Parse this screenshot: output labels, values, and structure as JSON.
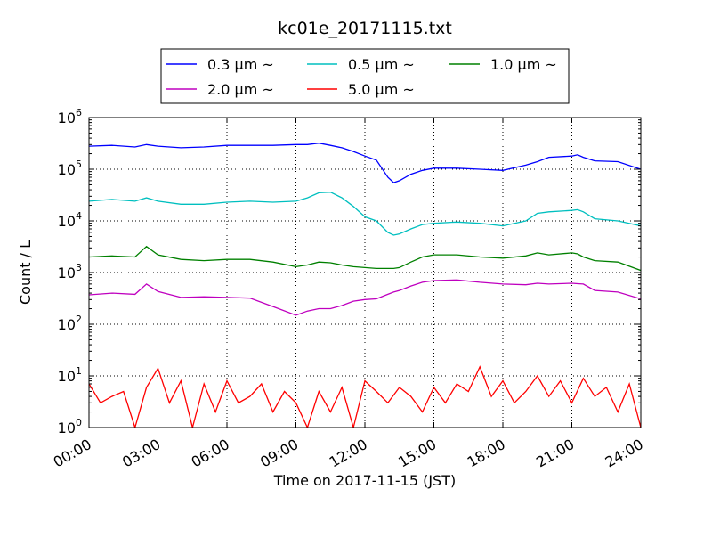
{
  "chart_data": {
    "type": "line",
    "title": "kc01e_20171115.txt",
    "xlabel": "Time on 2017-11-15 (JST)",
    "ylabel": "Count / L",
    "yscale": "log",
    "ylim": [
      1,
      1000000
    ],
    "xlim": [
      "00:00",
      "24:00"
    ],
    "x_ticks": [
      "00:00",
      "03:00",
      "06:00",
      "09:00",
      "12:00",
      "15:00",
      "18:00",
      "21:00",
      "24:00"
    ],
    "y_ticks": [
      {
        "base": "10",
        "exp": "0"
      },
      {
        "base": "10",
        "exp": "1"
      },
      {
        "base": "10",
        "exp": "2"
      },
      {
        "base": "10",
        "exp": "3"
      },
      {
        "base": "10",
        "exp": "4"
      },
      {
        "base": "10",
        "exp": "5"
      },
      {
        "base": "10",
        "exp": "6"
      }
    ],
    "grid": true,
    "legend_position": "top-center",
    "series": [
      {
        "name": "0.3 μm ~",
        "color": "#0000ff",
        "x": [
          "00:00",
          "01:00",
          "02:00",
          "02:30",
          "03:00",
          "04:00",
          "05:00",
          "06:00",
          "07:00",
          "08:00",
          "09:00",
          "09:30",
          "10:00",
          "10:30",
          "11:00",
          "11:30",
          "12:00",
          "12:30",
          "13:00",
          "13:15",
          "13:30",
          "14:00",
          "14:30",
          "15:00",
          "16:00",
          "17:00",
          "18:00",
          "19:00",
          "19:30",
          "20:00",
          "21:00",
          "21:15",
          "21:30",
          "22:00",
          "23:00",
          "24:00"
        ],
        "values": [
          280000,
          290000,
          270000,
          300000,
          280000,
          260000,
          270000,
          290000,
          290000,
          290000,
          300000,
          300000,
          320000,
          290000,
          260000,
          220000,
          180000,
          150000,
          70000,
          55000,
          60000,
          80000,
          95000,
          105000,
          105000,
          100000,
          95000,
          120000,
          140000,
          170000,
          180000,
          190000,
          170000,
          145000,
          140000,
          100000
        ]
      },
      {
        "name": "0.5 μm ~",
        "color": "#00bfbf",
        "x": [
          "00:00",
          "01:00",
          "02:00",
          "02:30",
          "03:00",
          "04:00",
          "05:00",
          "06:00",
          "07:00",
          "08:00",
          "09:00",
          "09:30",
          "10:00",
          "10:30",
          "11:00",
          "11:30",
          "12:00",
          "12:30",
          "13:00",
          "13:15",
          "13:30",
          "14:00",
          "14:30",
          "15:00",
          "16:00",
          "17:00",
          "18:00",
          "19:00",
          "19:30",
          "20:00",
          "21:00",
          "21:15",
          "21:30",
          "22:00",
          "23:00",
          "24:00"
        ],
        "values": [
          24000,
          26000,
          24000,
          28000,
          24000,
          21000,
          21000,
          23000,
          24000,
          23000,
          24000,
          28000,
          35000,
          36000,
          28000,
          19000,
          12000,
          10000,
          6000,
          5300,
          5600,
          7000,
          8500,
          9000,
          9500,
          9000,
          8000,
          10000,
          14000,
          15000,
          16000,
          16500,
          15000,
          11000,
          10000,
          8000
        ]
      },
      {
        "name": "1.0 μm ~",
        "color": "#008000",
        "x": [
          "00:00",
          "01:00",
          "02:00",
          "02:30",
          "03:00",
          "04:00",
          "05:00",
          "06:00",
          "07:00",
          "08:00",
          "09:00",
          "09:30",
          "10:00",
          "10:30",
          "11:00",
          "11:30",
          "12:00",
          "12:30",
          "13:00",
          "13:15",
          "13:30",
          "14:00",
          "14:30",
          "15:00",
          "16:00",
          "17:00",
          "18:00",
          "19:00",
          "19:30",
          "20:00",
          "21:00",
          "21:15",
          "21:30",
          "22:00",
          "23:00",
          "24:00"
        ],
        "values": [
          2000,
          2100,
          2000,
          3200,
          2200,
          1800,
          1700,
          1800,
          1800,
          1600,
          1300,
          1400,
          1600,
          1550,
          1400,
          1300,
          1250,
          1200,
          1200,
          1200,
          1250,
          1600,
          2000,
          2200,
          2200,
          2000,
          1900,
          2100,
          2400,
          2200,
          2400,
          2300,
          2000,
          1700,
          1600,
          1100
        ]
      },
      {
        "name": "2.0 μm ~",
        "color": "#bf00bf",
        "x": [
          "00:00",
          "01:00",
          "02:00",
          "02:30",
          "03:00",
          "04:00",
          "05:00",
          "06:00",
          "07:00",
          "08:00",
          "09:00",
          "09:30",
          "10:00",
          "10:30",
          "11:00",
          "11:30",
          "12:00",
          "12:30",
          "13:00",
          "13:15",
          "13:30",
          "14:00",
          "14:30",
          "15:00",
          "16:00",
          "17:00",
          "18:00",
          "19:00",
          "19:30",
          "20:00",
          "21:00",
          "21:15",
          "21:30",
          "22:00",
          "23:00",
          "24:00"
        ],
        "values": [
          370,
          400,
          380,
          600,
          430,
          330,
          340,
          330,
          320,
          220,
          150,
          180,
          200,
          200,
          230,
          280,
          300,
          310,
          380,
          420,
          450,
          550,
          650,
          700,
          720,
          650,
          600,
          580,
          620,
          600,
          620,
          610,
          600,
          450,
          420,
          310
        ]
      },
      {
        "name": "5.0 μm ~",
        "color": "#ff0000",
        "x": [
          "00:00",
          "00:30",
          "01:00",
          "01:30",
          "02:00",
          "02:30",
          "03:00",
          "03:30",
          "04:00",
          "04:30",
          "05:00",
          "05:30",
          "06:00",
          "06:30",
          "07:00",
          "07:30",
          "08:00",
          "08:30",
          "09:00",
          "09:30",
          "10:00",
          "10:30",
          "11:00",
          "11:30",
          "12:00",
          "12:30",
          "13:00",
          "13:30",
          "14:00",
          "14:30",
          "15:00",
          "15:30",
          "16:00",
          "16:30",
          "17:00",
          "17:30",
          "18:00",
          "18:30",
          "19:00",
          "19:30",
          "20:00",
          "20:30",
          "21:00",
          "21:30",
          "22:00",
          "22:30",
          "23:00",
          "23:30",
          "24:00"
        ],
        "values": [
          7,
          3,
          4,
          5,
          1,
          6,
          14,
          3,
          8,
          1,
          7,
          2,
          8,
          3,
          4,
          7,
          2,
          5,
          3,
          1,
          5,
          2,
          6,
          1,
          8,
          5,
          3,
          6,
          4,
          2,
          6,
          3,
          7,
          5,
          15,
          4,
          8,
          3,
          5,
          10,
          4,
          8,
          3,
          9,
          4,
          6,
          2,
          7,
          1
        ]
      }
    ]
  }
}
